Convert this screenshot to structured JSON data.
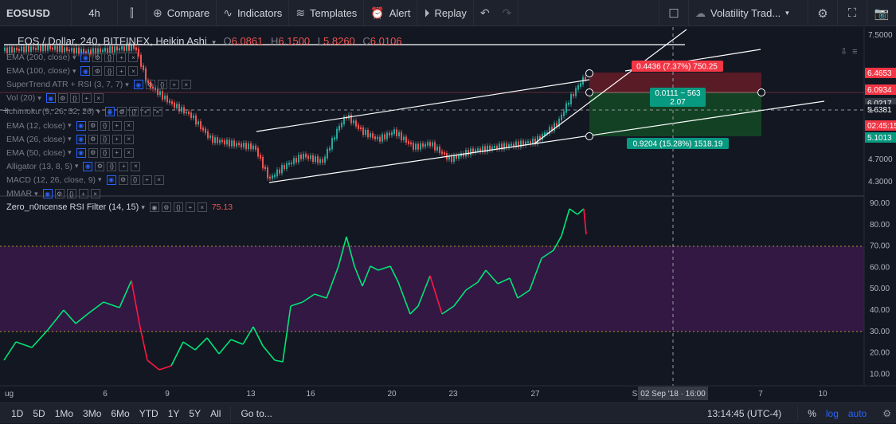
{
  "toolbar": {
    "symbol": "EOSUSD",
    "interval": "4h",
    "compare": "Compare",
    "indicators": "Indicators",
    "templates": "Templates",
    "alert": "Alert",
    "replay": "Replay",
    "layout": "Volatility Trad..."
  },
  "main_legend": {
    "title": "EOS / Dollar, 240, BITFINEX, Heikin Ashi",
    "o_label": "O",
    "o": "6.0861",
    "h_label": "H",
    "h": "6.1500",
    "l_label": "L",
    "l": "5.8260",
    "c_label": "C",
    "c": "6.0106"
  },
  "indicators": [
    "EMA (200, close)",
    "EMA (100, close)",
    "SuperTrend ATR + RSI (3, 7, 7)",
    "Vol (20)",
    "Ichimoku (9, 26, 52, 26)",
    "EMA (12, close)",
    "EMA (26, close)",
    "EMA (50, close)",
    "Alligator (13, 8, 5)",
    "MACD (12, 26, close, 9)",
    "MMAR"
  ],
  "rsi_legend": {
    "title": "Zero_n0ncense RSI Filter (14, 15)",
    "value": "75.13"
  },
  "price_axis": [
    "7.5000",
    "4.7000",
    "4.3000"
  ],
  "price_badges": [
    {
      "text": "6.4653",
      "color": "#f23645"
    },
    {
      "text": "6.0934",
      "color": "#f23645"
    },
    {
      "text": "6.0217",
      "color": "#363a45"
    },
    {
      "text": "5.6381",
      "color": "#131722"
    },
    {
      "text": "02:45:15",
      "color": "#f23645"
    },
    {
      "text": "5.1013",
      "color": "#089981"
    }
  ],
  "rsi_axis": [
    "90.00",
    "80.00",
    "70.00",
    "60.00",
    "50.00",
    "40.00",
    "30.00",
    "20.00",
    "10.00"
  ],
  "time_axis": [
    "ug",
    "6",
    "9",
    "13",
    "16",
    "20",
    "23",
    "27",
    "S",
    "7",
    "10"
  ],
  "crosshair_time": "02 Sep '18 · 16:00",
  "position_labels": {
    "target": "0.4436 (7.37%) 750.25",
    "entry_a": "0.0111 ~ 563",
    "entry_b": "2.07",
    "stop": "0.9204 (15.28%) 1518.19"
  },
  "bottom": {
    "ranges": [
      "1D",
      "5D",
      "1Mo",
      "3Mo",
      "6Mo",
      "YTD",
      "1Y",
      "5Y",
      "All"
    ],
    "goto": "Go to...",
    "clock": "13:14:45 (UTC-4)",
    "pct": "%",
    "log": "log",
    "auto": "auto"
  },
  "colors": {
    "up": "#26a69a",
    "down": "#ef5350",
    "rsi_up": "#00e676",
    "rsi_down": "#ff1744",
    "band": "#3d1a4f"
  }
}
